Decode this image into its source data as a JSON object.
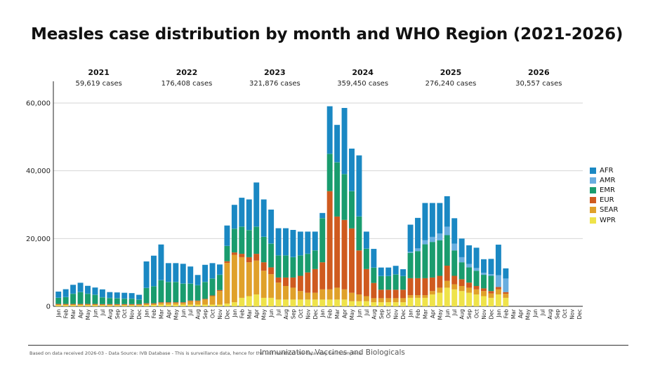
{
  "title": "Measles case distribution by month and WHO Region (2021-2026)",
  "colors": {
    "AFR": "#1a88c3",
    "AMR": "#69aee0",
    "EMR": "#199c6e",
    "EUR": "#cf5a1f",
    "SEAR": "#e0a12a",
    "WPR": "#efe34a"
  },
  "legend": [
    "AFR",
    "AMR",
    "EMR",
    "EUR",
    "SEAR",
    "WPR"
  ],
  "years": [
    {
      "year": "2021",
      "cases": "59,619 cases"
    },
    {
      "year": "2022",
      "cases": "176,408 cases"
    },
    {
      "year": "2023",
      "cases": "321,876 cases"
    },
    {
      "year": "2024",
      "cases": "359,450 cases"
    },
    {
      "year": "2025",
      "cases": "276,240 cases"
    },
    {
      "year": "2026",
      "cases": "30,557 cases"
    }
  ],
  "chart_data": {
    "type": "bar",
    "stacked": true,
    "ylim": [
      0,
      65000
    ],
    "yticks": [
      0,
      20000,
      40000,
      60000
    ],
    "ytick_labels": [
      "0",
      "20,000",
      "40,000",
      "60,000"
    ],
    "grid": true,
    "legend_position": "right",
    "month_labels": [
      "Jan",
      "Feb",
      "Mar",
      "Apr",
      "May",
      "Jun",
      "Jul",
      "Aug",
      "Sep",
      "Oct",
      "Nov",
      "Dec"
    ],
    "series_order": [
      "WPR",
      "SEAR",
      "EUR",
      "EMR",
      "AMR",
      "AFR"
    ],
    "series": [
      {
        "name": "WPR",
        "values": [
          300,
          300,
          300,
          300,
          300,
          300,
          250,
          250,
          250,
          250,
          250,
          250,
          400,
          400,
          500,
          500,
          500,
          500,
          500,
          500,
          500,
          500,
          500,
          800,
          1200,
          2500,
          3000,
          3500,
          2500,
          2500,
          2000,
          2000,
          2000,
          2000,
          2000,
          2000,
          2000,
          2000,
          2000,
          2000,
          1500,
          1500,
          1500,
          1200,
          1200,
          1200,
          1200,
          1200,
          2500,
          2500,
          2500,
          3500,
          4000,
          5500,
          5000,
          4500,
          4000,
          3500,
          3000,
          2500,
          3500,
          2500,
          0,
          0,
          0,
          0,
          0,
          0,
          0,
          0,
          0,
          0
        ]
      },
      {
        "name": "SEAR",
        "values": [
          200,
          200,
          200,
          200,
          200,
          200,
          200,
          200,
          200,
          200,
          200,
          200,
          300,
          300,
          500,
          500,
          500,
          500,
          1000,
          1000,
          1500,
          2500,
          4000,
          12000,
          14000,
          12000,
          10000,
          10000,
          8000,
          7000,
          5000,
          4000,
          3500,
          2500,
          2000,
          2000,
          3000,
          3000,
          3500,
          3000,
          2500,
          2000,
          1500,
          1200,
          1200,
          1200,
          1200,
          1200,
          800,
          800,
          800,
          1000,
          1500,
          2000,
          1500,
          1500,
          1500,
          1500,
          1500,
          1300,
          1500,
          1200,
          0,
          0,
          0,
          0,
          0,
          0,
          0,
          0,
          0,
          0
        ]
      },
      {
        "name": "EUR",
        "values": [
          200,
          200,
          200,
          200,
          200,
          200,
          200,
          200,
          200,
          200,
          200,
          200,
          200,
          200,
          200,
          200,
          200,
          200,
          200,
          200,
          200,
          200,
          300,
          500,
          700,
          1000,
          1500,
          2000,
          2500,
          2000,
          1500,
          2500,
          3000,
          4500,
          6000,
          7000,
          8000,
          29000,
          21000,
          20500,
          19000,
          13000,
          8000,
          4500,
          2500,
          2500,
          2500,
          2500,
          5000,
          5000,
          5000,
          4000,
          3500,
          4500,
          2500,
          2000,
          1500,
          1000,
          800,
          700,
          700,
          500,
          0,
          0,
          0,
          0,
          0,
          0,
          0,
          0,
          0,
          0
        ]
      },
      {
        "name": "EMR",
        "values": [
          1800,
          2000,
          3000,
          3500,
          3000,
          2700,
          2000,
          1800,
          1700,
          1600,
          1600,
          1300,
          4500,
          5000,
          6500,
          6000,
          6000,
          5500,
          5000,
          4500,
          5000,
          5000,
          4500,
          4500,
          7000,
          8000,
          8000,
          8000,
          7500,
          7000,
          6500,
          6500,
          6000,
          6000,
          5500,
          5500,
          13000,
          11000,
          16000,
          13500,
          11000,
          10000,
          6000,
          4500,
          4000,
          4000,
          4500,
          4000,
          7500,
          8000,
          10000,
          10500,
          10500,
          9000,
          7500,
          5000,
          4500,
          4500,
          4000,
          4500,
          0,
          0,
          0,
          0,
          0,
          0,
          0,
          0,
          0,
          0,
          0,
          0
        ]
      },
      {
        "name": "AMR",
        "values": [
          50,
          50,
          50,
          50,
          50,
          50,
          50,
          50,
          50,
          50,
          50,
          50,
          50,
          50,
          50,
          50,
          50,
          50,
          50,
          50,
          50,
          50,
          50,
          50,
          50,
          50,
          50,
          50,
          50,
          50,
          50,
          50,
          50,
          50,
          50,
          50,
          50,
          50,
          50,
          50,
          50,
          50,
          50,
          50,
          50,
          50,
          50,
          50,
          300,
          800,
          1200,
          1500,
          2000,
          2500,
          2000,
          1500,
          1000,
          800,
          600,
          500,
          3500,
          4000,
          0,
          0,
          0,
          0,
          0,
          0,
          0,
          0,
          0,
          0
        ]
      },
      {
        "name": "AFR",
        "values": [
          1800,
          2300,
          2600,
          2700,
          2300,
          2100,
          2300,
          1700,
          1700,
          1700,
          1600,
          1400,
          7800,
          9000,
          10500,
          5500,
          5500,
          5800,
          5000,
          3000,
          5000,
          4500,
          3000,
          6000,
          7000,
          8500,
          9000,
          13000,
          11000,
          10000,
          8000,
          8000,
          8000,
          7000,
          6500,
          5500,
          1500,
          14000,
          11000,
          19500,
          12500,
          18000,
          5000,
          5500,
          2500,
          2500,
          2500,
          2000,
          8000,
          9000,
          11000,
          10000,
          9000,
          9000,
          7500,
          5500,
          5500,
          6000,
          4000,
          4500,
          9000,
          3000,
          0,
          0,
          0,
          0,
          0,
          0,
          0,
          0,
          0,
          0
        ]
      }
    ]
  },
  "footer": {
    "note": "Based on data received 2026-03 - Data Source: IVB Database - This is surveillance data, hence for the last month(s) the data may be incomplete.",
    "credit": "Immunization, Vaccines and Biologicals"
  }
}
